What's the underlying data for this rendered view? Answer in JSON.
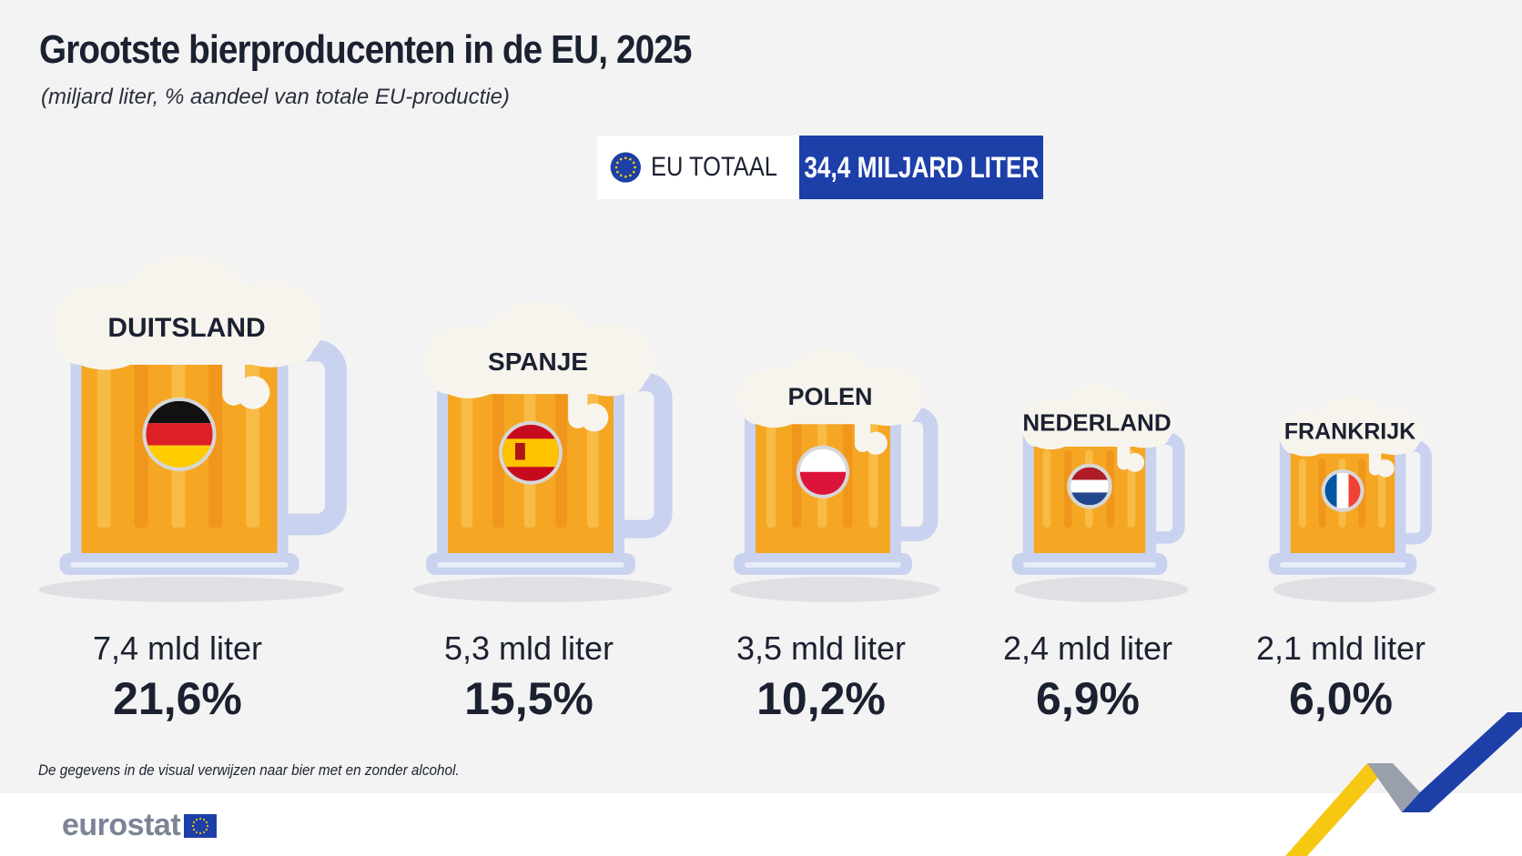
{
  "header": {
    "title": "Grootste bierproducenten in de EU, 2025",
    "subtitle": "(miljard liter, % aandeel van totale EU-productie)"
  },
  "eu_total": {
    "label": "EU TOTAAL",
    "value": "34,4 MILJARD LITER",
    "flag_icon": "eu-flag-icon"
  },
  "footnote": "De gegevens in de visual verwijzen naar bier met en zonder alcohol.",
  "footer": {
    "logo_text": "eurostat"
  },
  "colors": {
    "eu_blue": "#1d3fa8",
    "beer": "#f5a623",
    "glass": "#c9d2ee",
    "foam": "#f7f4ee",
    "accent_yellow": "#f6c812"
  },
  "chart_data": {
    "type": "bar",
    "categories": [
      "DUITSLAND",
      "SPANJE",
      "POLEN",
      "NEDERLAND",
      "FRANKRIJK"
    ],
    "series": [
      {
        "values": [
          7.4,
          5.3,
          3.5,
          2.4,
          2.1
        ]
      },
      {
        "values": [
          21.6,
          15.5,
          10.2,
          6.9,
          6.0
        ]
      }
    ],
    "volume_labels": [
      "7,4 mld liter",
      "5,3 mld liter",
      "3,5 mld liter",
      "2,4 mld liter",
      "2,1 mld liter"
    ],
    "share_labels": [
      "21,6%",
      "15,5%",
      "10,2%",
      "6,9%",
      "6,0%"
    ],
    "flags": [
      "germany-flag-icon",
      "spain-flag-icon",
      "poland-flag-icon",
      "netherlands-flag-icon",
      "france-flag-icon"
    ],
    "title": "Grootste bierproducenten in de EU, 2025"
  }
}
